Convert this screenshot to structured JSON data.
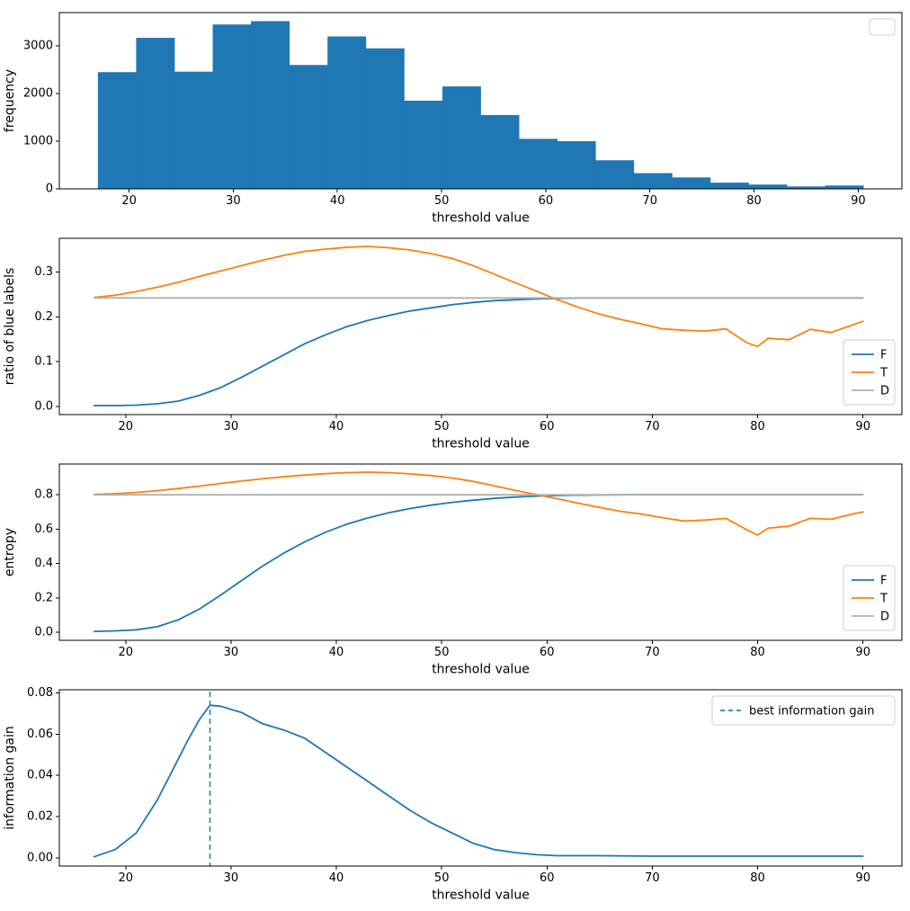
{
  "figure": {
    "background": "#ffffff",
    "text_color": "#000000",
    "axis_color": "#000000"
  },
  "colors": {
    "blue": "#1f77b4",
    "orange": "#ff7f0e",
    "gray": "#b0b0b0",
    "teal": "#1f8a99"
  },
  "chart_data": [
    {
      "id": "frequency-histogram",
      "type": "bar",
      "title": "",
      "xlabel": "threshold value",
      "ylabel": "frequency",
      "xlim": [
        13.3,
        94.2
      ],
      "ylim": [
        0,
        3700
      ],
      "xticks": [
        20,
        30,
        40,
        50,
        60,
        70,
        80,
        90
      ],
      "xtick_labels": [
        "20",
        "30",
        "40",
        "50",
        "60",
        "70",
        "80",
        "90"
      ],
      "yticks": [
        0,
        1000,
        2000,
        3000
      ],
      "ytick_labels": [
        "0",
        "1000",
        "2000",
        "3000"
      ],
      "bar_color": "#1f77b4",
      "bin_start": 17,
      "bin_width": 3.675,
      "values": [
        2450,
        3170,
        2460,
        3450,
        3520,
        2600,
        3200,
        2950,
        1850,
        2150,
        1550,
        1050,
        1000,
        600,
        330,
        240,
        130,
        90,
        50,
        70
      ],
      "legend": {
        "position": "upper-right",
        "entries": []
      }
    },
    {
      "id": "ratio-of-blue-labels",
      "type": "line",
      "title": "",
      "xlabel": "threshold value",
      "ylabel": "ratio of blue labels",
      "xlim": [
        13.7,
        93.7
      ],
      "ylim": [
        -0.018,
        0.375
      ],
      "xticks": [
        20,
        30,
        40,
        50,
        60,
        70,
        80,
        90
      ],
      "xtick_labels": [
        "20",
        "30",
        "40",
        "50",
        "60",
        "70",
        "80",
        "90"
      ],
      "yticks": [
        0,
        0.1,
        0.2,
        0.3
      ],
      "ytick_labels": [
        "0.0",
        "0.1",
        "0.2",
        "0.3"
      ],
      "series": [
        {
          "name": "F",
          "color": "#1f77b4",
          "dash": false,
          "x": [
            17,
            19,
            21,
            23,
            25,
            27,
            29,
            31,
            33,
            35,
            37,
            39,
            41,
            43,
            45,
            47,
            49,
            51,
            53,
            55,
            57,
            59,
            61,
            63,
            65,
            67,
            69,
            71,
            73,
            75,
            77,
            79,
            80,
            81,
            83,
            85,
            87,
            89,
            90
          ],
          "y": [
            0.002,
            0.002,
            0.003,
            0.006,
            0.012,
            0.025,
            0.042,
            0.065,
            0.09,
            0.115,
            0.14,
            0.16,
            0.178,
            0.192,
            0.203,
            0.213,
            0.22,
            0.227,
            0.232,
            0.236,
            0.238,
            0.24,
            0.241,
            0.242,
            0.242,
            0.242,
            0.242,
            0.242,
            0.242,
            0.242,
            0.242,
            0.242,
            0.242,
            0.242,
            0.242,
            0.242,
            0.242,
            0.242,
            0.242
          ]
        },
        {
          "name": "T",
          "color": "#ff7f0e",
          "dash": false,
          "x": [
            17,
            19,
            21,
            23,
            25,
            27,
            29,
            31,
            33,
            35,
            37,
            39,
            41,
            43,
            45,
            47,
            49,
            51,
            53,
            55,
            57,
            59,
            61,
            63,
            65,
            67,
            69,
            71,
            73,
            75,
            77,
            79,
            80,
            81,
            83,
            85,
            87,
            89,
            90
          ],
          "y": [
            0.243,
            0.248,
            0.256,
            0.266,
            0.277,
            0.29,
            0.302,
            0.314,
            0.326,
            0.337,
            0.346,
            0.351,
            0.355,
            0.357,
            0.354,
            0.349,
            0.341,
            0.33,
            0.314,
            0.295,
            0.276,
            0.257,
            0.238,
            0.221,
            0.206,
            0.194,
            0.184,
            0.173,
            0.17,
            0.168,
            0.173,
            0.142,
            0.134,
            0.152,
            0.149,
            0.172,
            0.165,
            0.182,
            0.19
          ]
        },
        {
          "name": "D",
          "color": "#b0b0b0",
          "dash": false,
          "x": [
            17,
            90
          ],
          "y": [
            0.242,
            0.242
          ]
        }
      ],
      "legend": {
        "position": "lower-right",
        "entries": [
          {
            "label": "F",
            "color": "#1f77b4",
            "dash": false
          },
          {
            "label": "T",
            "color": "#ff7f0e",
            "dash": false
          },
          {
            "label": "D",
            "color": "#b0b0b0",
            "dash": false
          }
        ]
      }
    },
    {
      "id": "entropy",
      "type": "line",
      "title": "",
      "xlabel": "threshold value",
      "ylabel": "entropy",
      "xlim": [
        13.7,
        93.7
      ],
      "ylim": [
        -0.047,
        0.978
      ],
      "xticks": [
        20,
        30,
        40,
        50,
        60,
        70,
        80,
        90
      ],
      "xtick_labels": [
        "20",
        "30",
        "40",
        "50",
        "60",
        "70",
        "80",
        "90"
      ],
      "yticks": [
        0,
        0.2,
        0.4,
        0.6,
        0.8
      ],
      "ytick_labels": [
        "0.0",
        "0.2",
        "0.4",
        "0.6",
        "0.8"
      ],
      "series": [
        {
          "name": "F",
          "color": "#1f77b4",
          "dash": false,
          "x": [
            17,
            19,
            21,
            23,
            25,
            27,
            29,
            31,
            33,
            35,
            37,
            39,
            41,
            43,
            45,
            47,
            49,
            51,
            53,
            55,
            57,
            59,
            61,
            63,
            65,
            67,
            69,
            71,
            73,
            75,
            77,
            79,
            80,
            81,
            83,
            85,
            87,
            89,
            90
          ],
          "y": [
            0.005,
            0.008,
            0.014,
            0.032,
            0.072,
            0.135,
            0.215,
            0.3,
            0.385,
            0.46,
            0.525,
            0.582,
            0.628,
            0.665,
            0.695,
            0.719,
            0.739,
            0.755,
            0.768,
            0.778,
            0.786,
            0.792,
            0.795,
            0.797,
            0.798,
            0.799,
            0.8,
            0.8,
            0.8,
            0.8,
            0.8,
            0.8,
            0.8,
            0.8,
            0.8,
            0.8,
            0.8,
            0.8,
            0.8
          ]
        },
        {
          "name": "T",
          "color": "#ff7f0e",
          "dash": false,
          "x": [
            17,
            19,
            21,
            23,
            25,
            27,
            29,
            31,
            33,
            35,
            37,
            39,
            41,
            43,
            45,
            47,
            49,
            51,
            53,
            55,
            57,
            59,
            61,
            63,
            65,
            67,
            69,
            71,
            73,
            75,
            77,
            79,
            80,
            81,
            83,
            85,
            87,
            89,
            90
          ],
          "y": [
            0.801,
            0.806,
            0.813,
            0.823,
            0.836,
            0.85,
            0.865,
            0.879,
            0.892,
            0.904,
            0.914,
            0.922,
            0.928,
            0.931,
            0.928,
            0.921,
            0.911,
            0.897,
            0.877,
            0.851,
            0.824,
            0.8,
            0.776,
            0.75,
            0.726,
            0.703,
            0.687,
            0.666,
            0.647,
            0.652,
            0.662,
            0.595,
            0.565,
            0.605,
            0.617,
            0.662,
            0.657,
            0.687,
            0.7
          ]
        },
        {
          "name": "D",
          "color": "#b0b0b0",
          "dash": false,
          "x": [
            17,
            90
          ],
          "y": [
            0.799,
            0.799
          ]
        }
      ],
      "legend": {
        "position": "lower-right",
        "entries": [
          {
            "label": "F",
            "color": "#1f77b4",
            "dash": false
          },
          {
            "label": "T",
            "color": "#ff7f0e",
            "dash": false
          },
          {
            "label": "D",
            "color": "#b0b0b0",
            "dash": false
          }
        ]
      }
    },
    {
      "id": "information-gain",
      "type": "line",
      "title": "",
      "xlabel": "threshold value",
      "ylabel": "information gain",
      "xlim": [
        13.7,
        93.7
      ],
      "ylim": [
        -0.004,
        0.0815
      ],
      "xticks": [
        20,
        30,
        40,
        50,
        60,
        70,
        80,
        90
      ],
      "xtick_labels": [
        "20",
        "30",
        "40",
        "50",
        "60",
        "70",
        "80",
        "90"
      ],
      "yticks": [
        0,
        0.02,
        0.04,
        0.06,
        0.08
      ],
      "ytick_labels": [
        "0.00",
        "0.02",
        "0.04",
        "0.06",
        "0.08"
      ],
      "series": [
        {
          "name": "information gain",
          "color": "#1f77b4",
          "dash": false,
          "x": [
            17,
            19,
            21,
            23,
            25,
            26,
            27,
            28,
            29,
            30,
            31,
            33,
            35,
            37,
            39,
            41,
            43,
            45,
            47,
            49,
            51,
            53,
            55,
            57,
            59,
            61,
            63,
            65,
            70,
            75,
            80,
            85,
            90
          ],
          "y": [
            0.0005,
            0.004,
            0.012,
            0.028,
            0.048,
            0.058,
            0.067,
            0.074,
            0.0735,
            0.072,
            0.0705,
            0.065,
            0.062,
            0.058,
            0.051,
            0.044,
            0.037,
            0.03,
            0.023,
            0.017,
            0.012,
            0.007,
            0.004,
            0.0025,
            0.0015,
            0.001,
            0.001,
            0.001,
            0.0008,
            0.0008,
            0.0008,
            0.0008,
            0.0008
          ]
        }
      ],
      "vline": {
        "x": 28,
        "color": "#1f8a99",
        "dash": true,
        "label": "best information gain"
      },
      "legend": {
        "position": "upper-right",
        "entries": [
          {
            "label": "best information gain",
            "color": "#1f8a99",
            "dash": true
          }
        ]
      }
    }
  ]
}
